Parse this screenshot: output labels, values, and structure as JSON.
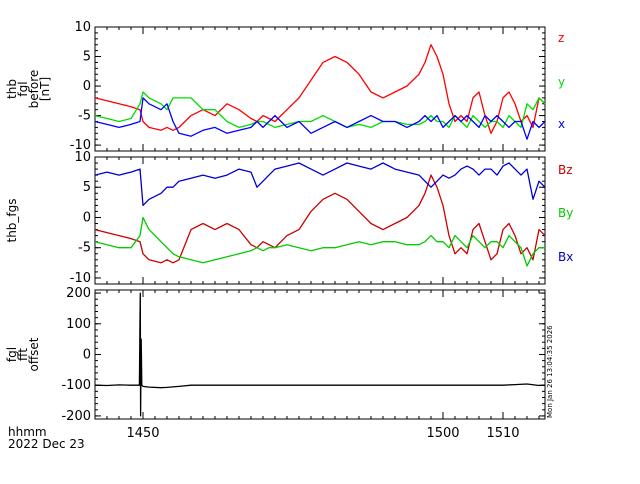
{
  "footer": {
    "time_unit": "hhmm",
    "date": "2022 Dec 23"
  },
  "stamp": "Mon Jan 26 13:04:35 2026",
  "colors": {
    "z": "#ff0000",
    "y": "#00dd00",
    "x": "#0000ff",
    "axis": "#000000"
  },
  "chart_data": [
    {
      "type": "line",
      "panel": "top",
      "ylabel": [
        "thb",
        "fgl",
        "before",
        "[nT]"
      ],
      "ylim": [
        -11,
        10
      ],
      "yticks": [
        -10,
        -5,
        0,
        5,
        10
      ],
      "xlim": [
        1442,
        1517
      ],
      "legend": [
        {
          "label": "z",
          "color": "#ff0000"
        },
        {
          "label": "y",
          "color": "#00dd00"
        },
        {
          "label": "x",
          "color": "#0000ff"
        }
      ],
      "series": [
        {
          "name": "z",
          "color": "#ff0000",
          "x": [
            1442,
            1444,
            1446,
            1448,
            1449.5,
            1450,
            1451,
            1453,
            1454,
            1455,
            1456,
            1458,
            1460,
            1462,
            1464,
            1466,
            1468,
            1469,
            1470,
            1471,
            1472,
            1474,
            1476,
            1478,
            1480,
            1482,
            1484,
            1486,
            1488,
            1490,
            1492,
            1494,
            1496,
            1497,
            1498,
            1499,
            1500,
            1501,
            1502,
            1503,
            1504,
            1505,
            1506,
            1507,
            1508,
            1509,
            1510,
            1511,
            1512,
            1513,
            1514,
            1515,
            1516,
            1517
          ],
          "y": [
            -2,
            -2.5,
            -3,
            -3.5,
            -4,
            -6,
            -7,
            -7.5,
            -7,
            -7.5,
            -7,
            -5,
            -4,
            -5,
            -3,
            -4,
            -5.5,
            -6,
            -5,
            -5.5,
            -6,
            -4,
            -2,
            1,
            4,
            5,
            4,
            2,
            -1,
            -2,
            -1,
            0,
            2,
            4,
            7,
            5,
            2,
            -3,
            -6,
            -5,
            -6,
            -2,
            -1,
            -5,
            -8,
            -6,
            -2,
            -1,
            -3,
            -6,
            -5,
            -7,
            -2,
            -3
          ]
        },
        {
          "name": "y",
          "color": "#00dd00",
          "x": [
            1442,
            1444,
            1446,
            1448,
            1449.5,
            1450,
            1451,
            1453,
            1454,
            1455,
            1456,
            1458,
            1460,
            1462,
            1464,
            1466,
            1468,
            1469,
            1470,
            1471,
            1472,
            1474,
            1476,
            1478,
            1480,
            1482,
            1484,
            1486,
            1488,
            1490,
            1492,
            1494,
            1496,
            1497,
            1498,
            1499,
            1500,
            1501,
            1502,
            1503,
            1504,
            1505,
            1506,
            1507,
            1508,
            1509,
            1510,
            1511,
            1512,
            1513,
            1514,
            1515,
            1516,
            1517
          ],
          "y": [
            -5,
            -5.5,
            -6,
            -5.5,
            -3,
            -1,
            -2,
            -3,
            -4,
            -2,
            -2,
            -2,
            -4,
            -4,
            -6,
            -7,
            -6.5,
            -6,
            -6,
            -6.5,
            -7,
            -6.5,
            -6,
            -6,
            -5,
            -6,
            -7,
            -6.5,
            -7,
            -6,
            -6,
            -6.5,
            -6.5,
            -6,
            -5,
            -6,
            -6,
            -7,
            -5,
            -6,
            -7,
            -5,
            -6,
            -7,
            -6,
            -6,
            -7,
            -5,
            -6,
            -7,
            -3,
            -4,
            -2,
            -3
          ]
        },
        {
          "name": "x",
          "color": "#0000ff",
          "x": [
            1442,
            1444,
            1446,
            1448,
            1449.5,
            1450,
            1451,
            1453,
            1454,
            1455,
            1456,
            1458,
            1460,
            1462,
            1464,
            1466,
            1468,
            1469,
            1470,
            1471,
            1472,
            1474,
            1476,
            1478,
            1480,
            1482,
            1484,
            1486,
            1488,
            1490,
            1492,
            1494,
            1496,
            1497,
            1498,
            1499,
            1500,
            1501,
            1502,
            1503,
            1504,
            1505,
            1506,
            1507,
            1508,
            1509,
            1510,
            1511,
            1512,
            1513,
            1514,
            1515,
            1516,
            1517
          ],
          "y": [
            -6,
            -6.5,
            -7,
            -6.5,
            -6,
            -2,
            -3,
            -4,
            -3,
            -6,
            -8,
            -8.5,
            -7.5,
            -7,
            -8,
            -7.5,
            -7,
            -6,
            -7,
            -6,
            -5,
            -7,
            -6,
            -8,
            -7,
            -6,
            -7,
            -6,
            -5,
            -6,
            -6,
            -7,
            -6,
            -5,
            -6,
            -5,
            -7,
            -6,
            -5,
            -6,
            -5,
            -6,
            -7,
            -5,
            -6,
            -5,
            -6,
            -7,
            -6,
            -6,
            -9,
            -6,
            -7,
            -6
          ]
        }
      ]
    },
    {
      "type": "line",
      "panel": "middle",
      "ylabel": [
        "thb_fgs"
      ],
      "ylim": [
        -11,
        10
      ],
      "yticks": [
        -10,
        -5,
        0,
        5,
        10
      ],
      "xlim": [
        1442,
        1517
      ],
      "legend": [
        {
          "label": "Bz",
          "color": "#cc0000"
        },
        {
          "label": "By",
          "color": "#00cc00"
        },
        {
          "label": "Bx",
          "color": "#0000cc"
        }
      ],
      "series": [
        {
          "name": "Bz",
          "color": "#cc0000",
          "x": [
            1442,
            1444,
            1446,
            1448,
            1449.5,
            1450,
            1451,
            1453,
            1454,
            1455,
            1456,
            1458,
            1460,
            1462,
            1464,
            1466,
            1468,
            1469,
            1470,
            1471,
            1472,
            1474,
            1476,
            1478,
            1480,
            1482,
            1484,
            1486,
            1488,
            1490,
            1492,
            1494,
            1496,
            1497,
            1498,
            1499,
            1500,
            1501,
            1502,
            1503,
            1504,
            1505,
            1506,
            1507,
            1508,
            1509,
            1510,
            1511,
            1512,
            1513,
            1514,
            1515,
            1516,
            1517
          ],
          "y": [
            -2,
            -2.5,
            -3,
            -3.5,
            -4,
            -6,
            -7,
            -7.5,
            -7,
            -7.5,
            -7,
            -2,
            -1,
            -2,
            -1,
            -2,
            -4.5,
            -5,
            -4,
            -4.5,
            -5,
            -3,
            -2,
            1,
            3,
            4,
            3,
            1,
            -1,
            -2,
            -1,
            0,
            2,
            4,
            7,
            5,
            2,
            -3,
            -6,
            -5,
            -6,
            -2,
            -1,
            -4,
            -7,
            -6,
            -2,
            -1,
            -3,
            -6,
            -5,
            -7,
            -2,
            -3
          ]
        },
        {
          "name": "By",
          "color": "#00cc00",
          "x": [
            1442,
            1444,
            1446,
            1448,
            1449.5,
            1450,
            1451,
            1453,
            1454,
            1455,
            1456,
            1458,
            1460,
            1462,
            1464,
            1466,
            1468,
            1469,
            1470,
            1471,
            1472,
            1474,
            1476,
            1478,
            1480,
            1482,
            1484,
            1486,
            1488,
            1490,
            1492,
            1494,
            1496,
            1497,
            1498,
            1499,
            1500,
            1501,
            1502,
            1503,
            1504,
            1505,
            1506,
            1507,
            1508,
            1509,
            1510,
            1511,
            1512,
            1513,
            1514,
            1515,
            1516,
            1517
          ],
          "y": [
            -4,
            -4.5,
            -5,
            -5,
            -3,
            0,
            -2,
            -4,
            -5,
            -6,
            -6.5,
            -7,
            -7.5,
            -7,
            -6.5,
            -6,
            -5.5,
            -5,
            -5.5,
            -5,
            -5,
            -4.5,
            -5,
            -5.5,
            -5,
            -5,
            -4.5,
            -4,
            -4.5,
            -4,
            -4,
            -4.5,
            -4.5,
            -4,
            -3,
            -4,
            -4,
            -5,
            -3,
            -4,
            -5,
            -3,
            -4,
            -5,
            -4,
            -4,
            -5,
            -3,
            -4,
            -5,
            -8,
            -6,
            -5,
            -5
          ]
        },
        {
          "name": "Bx",
          "color": "#0000cc",
          "x": [
            1442,
            1444,
            1446,
            1448,
            1449.5,
            1450,
            1451,
            1453,
            1454,
            1455,
            1456,
            1458,
            1460,
            1462,
            1464,
            1466,
            1468,
            1469,
            1470,
            1471,
            1472,
            1474,
            1476,
            1478,
            1480,
            1482,
            1484,
            1486,
            1488,
            1490,
            1492,
            1494,
            1496,
            1497,
            1498,
            1499,
            1500,
            1501,
            1502,
            1503,
            1504,
            1505,
            1506,
            1507,
            1508,
            1509,
            1510,
            1511,
            1512,
            1513,
            1514,
            1515,
            1516,
            1517
          ],
          "y": [
            7,
            7.5,
            7,
            7.5,
            8,
            2,
            3,
            4,
            5,
            5,
            6,
            6.5,
            7,
            6.5,
            7,
            8,
            7.5,
            5,
            6,
            7,
            8,
            8.5,
            9,
            8,
            7,
            8,
            9,
            8.5,
            8,
            9,
            8,
            7.5,
            7,
            6,
            5,
            6,
            7,
            6.5,
            7,
            8,
            8.5,
            8,
            7,
            8,
            8,
            7,
            8.5,
            9,
            8,
            7,
            8,
            3,
            6,
            5
          ]
        }
      ]
    },
    {
      "type": "line",
      "panel": "bottom",
      "ylabel": [
        "fgl",
        "fft",
        "offset"
      ],
      "ylim": [
        -210,
        210
      ],
      "yticks": [
        -200,
        -100,
        0,
        100,
        200
      ],
      "xlim": [
        1442,
        1517
      ],
      "xticks": [
        1450,
        1500,
        1510
      ],
      "xticklabels": [
        "1450",
        "1500",
        "1510"
      ],
      "series": [
        {
          "name": "offset",
          "color": "#000000",
          "x": [
            1442,
            1444,
            1446,
            1448,
            1449.4,
            1449.5,
            1449.55,
            1449.6,
            1449.7,
            1449.8,
            1450,
            1451,
            1453,
            1454,
            1456,
            1458,
            1460,
            1462,
            1464,
            1466,
            1468,
            1470,
            1472,
            1474,
            1476,
            1478,
            1480,
            1482,
            1484,
            1486,
            1488,
            1490,
            1492,
            1494,
            1496,
            1498,
            1500,
            1502,
            1504,
            1506,
            1508,
            1510,
            1512,
            1514,
            1516,
            1517
          ],
          "y": [
            -100,
            -101,
            -99,
            -100,
            -100,
            120,
            200,
            -200,
            50,
            -100,
            -104,
            -106,
            -108,
            -107,
            -104,
            -100,
            -100,
            -100,
            -100,
            -100,
            -100,
            -100,
            -100,
            -100,
            -100,
            -100,
            -100,
            -100,
            -100,
            -100,
            -100,
            -100,
            -100,
            -100,
            -100,
            -100,
            -100,
            -100,
            -100,
            -100,
            -100,
            -100,
            -98,
            -96,
            -101,
            -100
          ]
        }
      ]
    }
  ]
}
